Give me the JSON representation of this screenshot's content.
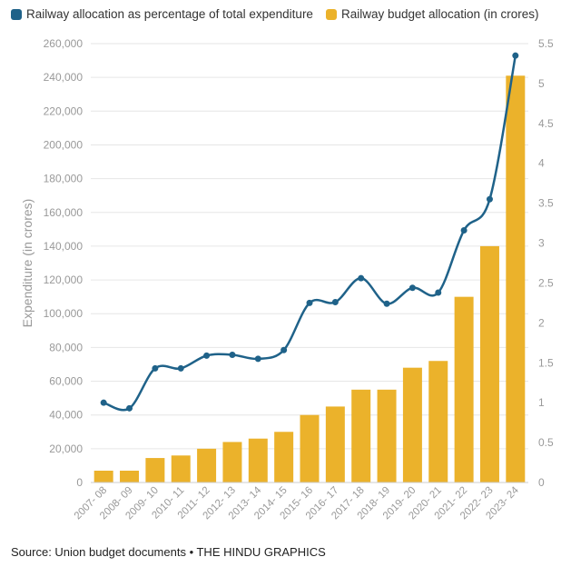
{
  "legend": {
    "line_label": "Railway allocation as percentage of total expenditure",
    "bar_label": "Railway budget allocation (in crores)"
  },
  "source_text": "Source: Union budget documents • THE HINDU GRAPHICS",
  "colors": {
    "bar": "#EBB22B",
    "line": "#1F6289",
    "grid": "#E6E6E6",
    "axis_text": "#999999"
  },
  "chart_data": {
    "type": "bar",
    "categories": [
      "2007- 08",
      "2008- 09",
      "2009- 10",
      "2010- 11",
      "2011- 12",
      "2012- 13",
      "2013- 14",
      "2014- 15",
      "2015- 16",
      "2016- 17",
      "2017- 18",
      "2018- 19",
      "2019- 20",
      "2020- 21",
      "2021- 22",
      "2022- 23",
      "2023- 24"
    ],
    "series": [
      {
        "name": "Railway budget allocation (in crores)",
        "type": "bar",
        "axis": "left",
        "values": [
          7000,
          7000,
          14500,
          16000,
          20000,
          24000,
          26000,
          30000,
          40000,
          45000,
          55000,
          55000,
          68000,
          72000,
          110000,
          140000,
          241000
        ]
      },
      {
        "name": "Railway allocation as percentage of total expenditure",
        "type": "line",
        "axis": "right",
        "values": [
          1.0,
          0.93,
          1.43,
          1.43,
          1.59,
          1.6,
          1.55,
          1.66,
          2.25,
          2.26,
          2.56,
          2.24,
          2.44,
          2.38,
          3.16,
          3.55,
          5.35
        ]
      }
    ],
    "ylabel": "Expenditure (in crores)",
    "ylim": [
      0,
      260000
    ],
    "y_ticks": [
      "0",
      "20,000",
      "40,000",
      "60,000",
      "80,000",
      "100,000",
      "120,000",
      "140,000",
      "160,000",
      "180,000",
      "200,000",
      "220,000",
      "240,000",
      "260,000"
    ],
    "y2lim": [
      0,
      5.5
    ],
    "y2_ticks": [
      "0",
      "0.5",
      "1",
      "1.5",
      "2",
      "2.5",
      "3",
      "3.5",
      "4",
      "4.5",
      "5",
      "5.5"
    ],
    "grid": true,
    "legend_position": "top-left"
  }
}
